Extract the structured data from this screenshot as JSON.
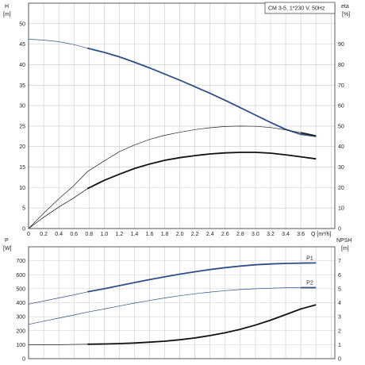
{
  "chart_data": [
    {
      "type": "line",
      "legend_text": "CM 3-5, 1*230 V, 50Hz",
      "xlabel": "Q [m³/h]",
      "x_ticks": [
        "0",
        "0.2",
        "0.4",
        "0.6",
        "0.8",
        "1.0",
        "1.2",
        "1.4",
        "1.6",
        "1.8",
        "2.0",
        "2.2",
        "2.4",
        "2.6",
        "2.8",
        "3.0",
        "3.2",
        "3.4",
        "3.6"
      ],
      "xlim": [
        0,
        4.05
      ],
      "ylabel_left": "H",
      "ylabel_left_unit": "[m]",
      "ylim_left": [
        0,
        55
      ],
      "y_ticks_left": [
        "0",
        "5",
        "10",
        "15",
        "20",
        "25",
        "30",
        "35",
        "40",
        "45",
        "50"
      ],
      "ylabel_right": "eta",
      "ylabel_right_unit": "[%]",
      "ylim_right": [
        0,
        110
      ],
      "y_ticks_right": [
        "0",
        "10",
        "20",
        "30",
        "40",
        "50",
        "60",
        "70",
        "80",
        "90"
      ],
      "grid": true,
      "series": [
        {
          "axis": "left",
          "color": "#2b4f8a",
          "points": [
            [
              0,
              46.2
            ],
            [
              0.2,
              46.0
            ],
            [
              0.4,
              45.6
            ],
            [
              0.6,
              44.9
            ],
            [
              0.78,
              44.0
            ],
            [
              1.0,
              43.0
            ],
            [
              1.2,
              41.9
            ],
            [
              1.4,
              40.6
            ],
            [
              1.6,
              39.2
            ],
            [
              1.8,
              37.7
            ],
            [
              2.0,
              36.2
            ],
            [
              2.2,
              34.6
            ],
            [
              2.4,
              33.0
            ],
            [
              2.6,
              31.3
            ],
            [
              2.8,
              29.5
            ],
            [
              3.0,
              27.7
            ],
            [
              3.2,
              25.9
            ],
            [
              3.4,
              24.2
            ],
            [
              3.6,
              23.0
            ],
            [
              3.8,
              22.5
            ]
          ],
          "emphasis_from": 0.78
        },
        {
          "axis": "right",
          "color": "#222222",
          "points": [
            [
              0,
              0
            ],
            [
              0.2,
              7.5
            ],
            [
              0.4,
              14.5
            ],
            [
              0.6,
              21
            ],
            [
              0.78,
              27.8
            ],
            [
              1.0,
              33
            ],
            [
              1.2,
              37.5
            ],
            [
              1.4,
              40.8
            ],
            [
              1.6,
              43.5
            ],
            [
              1.8,
              45.5
            ],
            [
              2.0,
              47
            ],
            [
              2.2,
              48.3
            ],
            [
              2.4,
              49.2
            ],
            [
              2.6,
              49.8
            ],
            [
              2.8,
              50
            ],
            [
              3.0,
              49.9
            ],
            [
              3.2,
              49.3
            ],
            [
              3.4,
              48.2
            ],
            [
              3.6,
              46.8
            ],
            [
              3.8,
              45.2
            ]
          ],
          "emphasis_from": 3.6
        },
        {
          "axis": "right",
          "color": "#111111",
          "points": [
            [
              0,
              0
            ],
            [
              0.2,
              5.5
            ],
            [
              0.4,
              10.5
            ],
            [
              0.6,
              15
            ],
            [
              0.78,
              19.5
            ],
            [
              1.0,
              23.5
            ],
            [
              1.2,
              26.5
            ],
            [
              1.4,
              29.3
            ],
            [
              1.6,
              31.5
            ],
            [
              1.8,
              33.3
            ],
            [
              2.0,
              34.6
            ],
            [
              2.2,
              35.6
            ],
            [
              2.4,
              36.4
            ],
            [
              2.6,
              36.9
            ],
            [
              2.8,
              37.2
            ],
            [
              3.0,
              37.2
            ],
            [
              3.2,
              36.8
            ],
            [
              3.4,
              36.0
            ],
            [
              3.6,
              35.0
            ],
            [
              3.8,
              34.0
            ]
          ],
          "emphasis_from": 0.78
        }
      ]
    },
    {
      "type": "line",
      "xlim": [
        0,
        4.05
      ],
      "ylabel_left": "P",
      "ylabel_left_unit": "[W]",
      "ylim_left": [
        0,
        800
      ],
      "y_ticks_left": [
        "0",
        "100",
        "200",
        "300",
        "400",
        "500",
        "600",
        "700"
      ],
      "ylabel_right": "NPSH",
      "ylabel_right_unit": "[m]",
      "ylim_right": [
        0,
        8
      ],
      "y_ticks_right": [
        "0",
        "1",
        "2",
        "3",
        "4",
        "5",
        "6",
        "7"
      ],
      "grid": true,
      "series": [
        {
          "name": "P1",
          "axis": "left",
          "color": "#2b4f8a",
          "points": [
            [
              0,
              390
            ],
            [
              0.2,
              412
            ],
            [
              0.4,
              434
            ],
            [
              0.6,
              456
            ],
            [
              0.78,
              478
            ],
            [
              1.0,
              500
            ],
            [
              1.2,
              522
            ],
            [
              1.4,
              544
            ],
            [
              1.6,
              565
            ],
            [
              1.8,
              585
            ],
            [
              2.0,
              604
            ],
            [
              2.2,
              621
            ],
            [
              2.4,
              637
            ],
            [
              2.6,
              651
            ],
            [
              2.8,
              662
            ],
            [
              3.0,
              671
            ],
            [
              3.2,
              677
            ],
            [
              3.4,
              681
            ],
            [
              3.6,
              683
            ],
            [
              3.8,
              684
            ]
          ],
          "emphasis_from": 0.78
        },
        {
          "name": "P2",
          "axis": "left",
          "color": "#2b4f8a",
          "points": [
            [
              0,
              245
            ],
            [
              0.2,
              268
            ],
            [
              0.4,
              290
            ],
            [
              0.6,
              312
            ],
            [
              0.78,
              333
            ],
            [
              1.0,
              355
            ],
            [
              1.2,
              376
            ],
            [
              1.4,
              397
            ],
            [
              1.6,
              416
            ],
            [
              1.8,
              434
            ],
            [
              2.0,
              450
            ],
            [
              2.2,
              464
            ],
            [
              2.4,
              476
            ],
            [
              2.6,
              486
            ],
            [
              2.8,
              494
            ],
            [
              3.0,
              500
            ],
            [
              3.2,
              504
            ],
            [
              3.4,
              507
            ],
            [
              3.6,
              508
            ],
            [
              3.8,
              508
            ]
          ],
          "emphasis_from": 3.5
        },
        {
          "axis": "right",
          "color": "#111111",
          "points": [
            [
              0,
              1.0
            ],
            [
              0.4,
              1.0
            ],
            [
              0.78,
              1.03
            ],
            [
              1.0,
              1.05
            ],
            [
              1.2,
              1.08
            ],
            [
              1.4,
              1.12
            ],
            [
              1.6,
              1.18
            ],
            [
              1.8,
              1.25
            ],
            [
              2.0,
              1.35
            ],
            [
              2.2,
              1.48
            ],
            [
              2.4,
              1.65
            ],
            [
              2.6,
              1.85
            ],
            [
              2.8,
              2.1
            ],
            [
              3.0,
              2.4
            ],
            [
              3.2,
              2.75
            ],
            [
              3.4,
              3.15
            ],
            [
              3.6,
              3.55
            ],
            [
              3.8,
              3.85
            ]
          ],
          "emphasis_from": 0.78
        }
      ]
    }
  ]
}
